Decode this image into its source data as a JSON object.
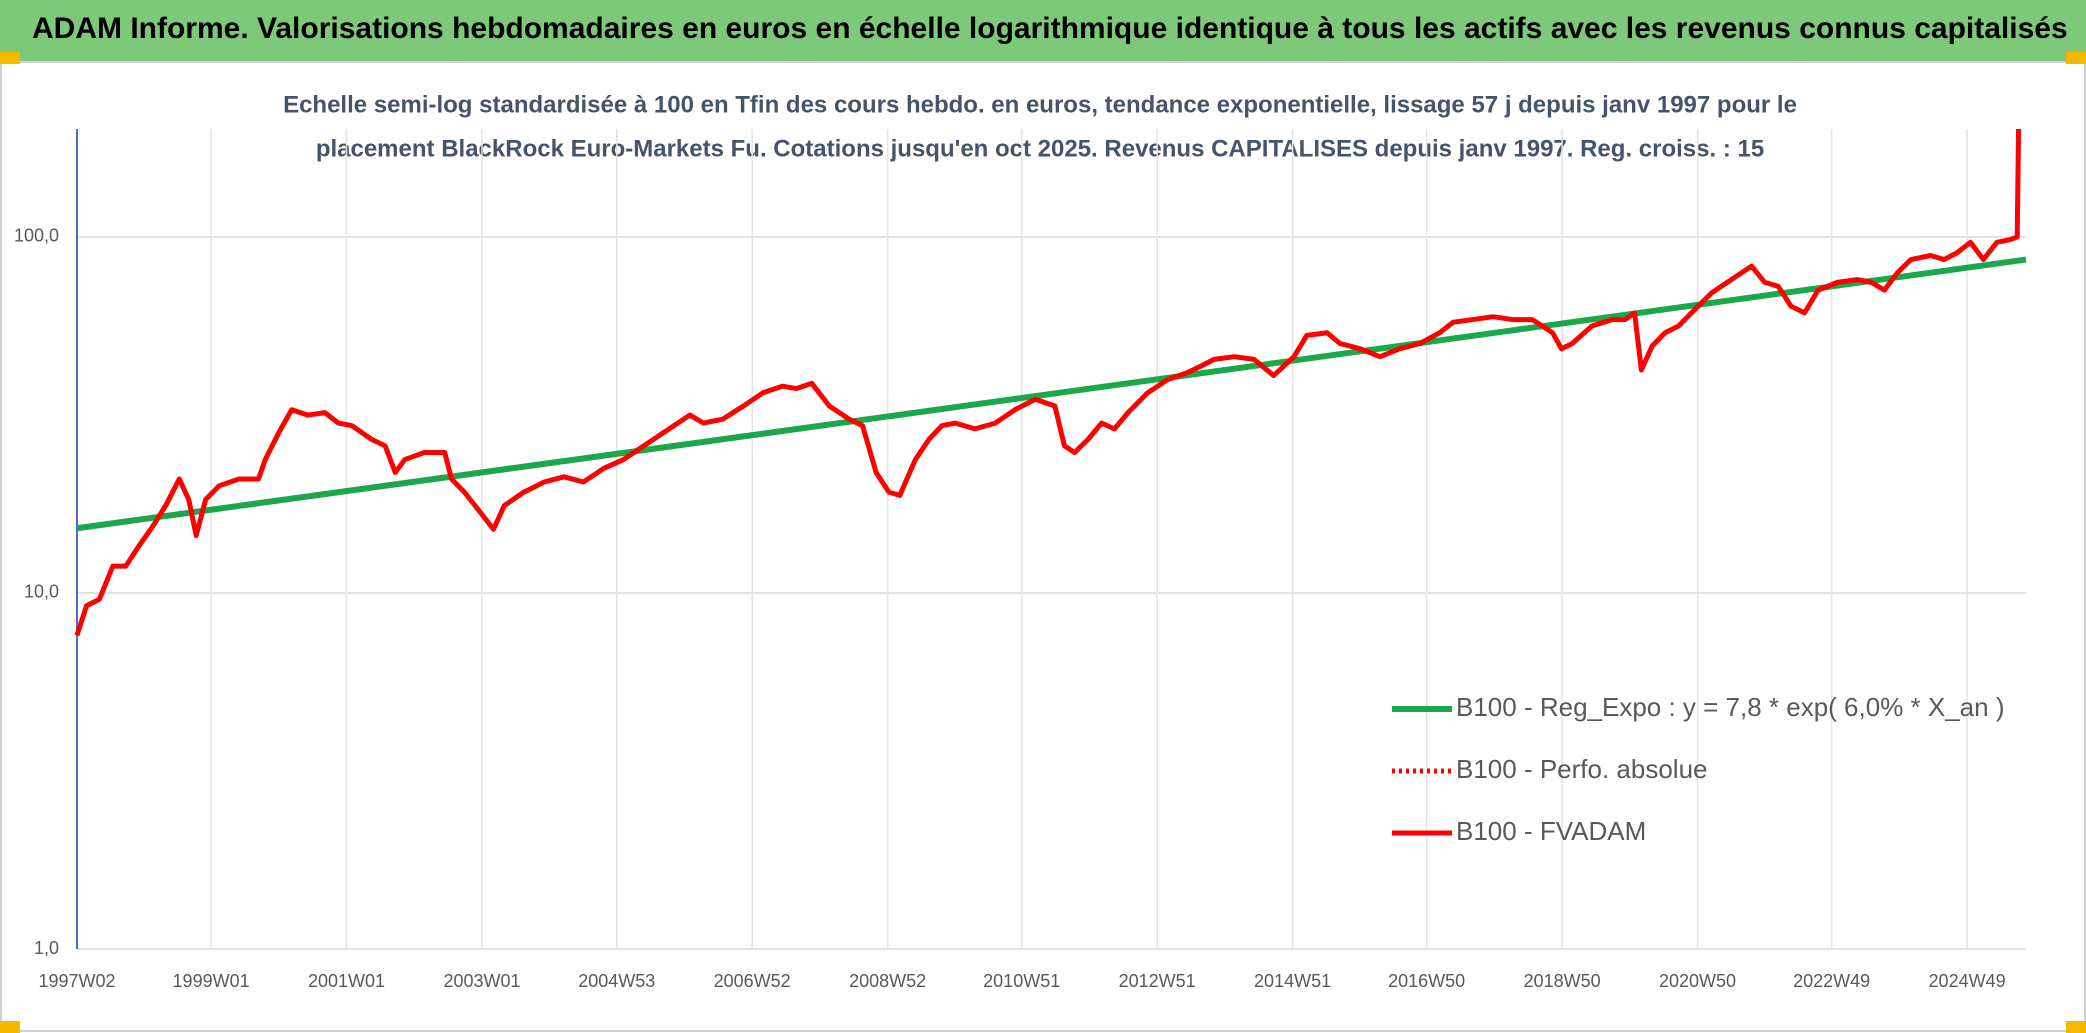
{
  "chart_data": {
    "type": "line",
    "title": "ADAM Informe. Valorisations hebdomadaires en euros en échelle logarithmique identique à tous les actifs avec les revenus connus capitalisés",
    "subtitle": [
      "Echelle semi-log standardisée à 100 en Tfin des cours hebdo. en euros, tendance exponentielle, lissage 57 j depuis janv 1997 pour le",
      "placement BlackRock Euro-Markets Fu. Cotations jusqu'en oct 2025. Revenus CAPITALISES depuis janv 1997. Reg. croiss. : 15"
    ],
    "log_y": true,
    "grid": true,
    "legend": "lower right",
    "xlim": [
      1997.02,
      2025.8
    ],
    "ylim": [
      1,
      201
    ],
    "yticks": [
      {
        "value": 1,
        "label": "1,0"
      },
      {
        "value": 10,
        "label": "10,0"
      },
      {
        "value": 100,
        "label": "100,0"
      }
    ],
    "xticks": [
      {
        "value": 1997.02,
        "label": "1997W02"
      },
      {
        "value": 1999.0,
        "label": "1999W01"
      },
      {
        "value": 2001.0,
        "label": "2001W01"
      },
      {
        "value": 2003.0,
        "label": "2003W01"
      },
      {
        "value": 2004.99,
        "label": "2004W53"
      },
      {
        "value": 2006.99,
        "label": "2006W52"
      },
      {
        "value": 2008.99,
        "label": "2008W52"
      },
      {
        "value": 2010.97,
        "label": "2010W51"
      },
      {
        "value": 2012.97,
        "label": "2012W51"
      },
      {
        "value": 2014.97,
        "label": "2014W51"
      },
      {
        "value": 2016.95,
        "label": "2016W50"
      },
      {
        "value": 2018.95,
        "label": "2018W50"
      },
      {
        "value": 2020.95,
        "label": "2020W50"
      },
      {
        "value": 2022.93,
        "label": "2022W49"
      },
      {
        "value": 2024.93,
        "label": "2024W49"
      }
    ],
    "series": [
      {
        "name": "B100 - Reg_Expo : y = 7,8 * exp( 6,0% *  X_an )",
        "color": "#1aa84a",
        "dash": "solid",
        "width": 6,
        "x": [
          1997.02,
          2025.8
        ],
        "values": [
          15.2,
          86.4
        ]
      },
      {
        "name": "B100 - Perfo. absolue",
        "color": "#ff0000",
        "dash": "dotted",
        "width": 5,
        "x": [],
        "values": []
      },
      {
        "name": "B100 - FVADAM",
        "color": "#ff0000",
        "dash": "solid",
        "width": 5,
        "x": [
          1997.02,
          1997.16,
          1997.35,
          1997.55,
          1997.74,
          1997.94,
          1998.14,
          1998.33,
          1998.53,
          1998.67,
          1998.78,
          1998.92,
          1999.12,
          1999.41,
          1999.7,
          1999.8,
          2000.0,
          2000.19,
          2000.43,
          2000.68,
          2000.88,
          2001.08,
          2001.37,
          2001.57,
          2001.72,
          2001.86,
          2002.15,
          2002.45,
          2002.55,
          2002.74,
          2002.98,
          2003.17,
          2003.33,
          2003.62,
          2003.92,
          2004.21,
          2004.5,
          2004.8,
          2005.09,
          2005.39,
          2005.68,
          2006.07,
          2006.27,
          2006.56,
          2006.86,
          2007.15,
          2007.44,
          2007.64,
          2007.87,
          2008.13,
          2008.42,
          2008.62,
          2008.82,
          2009.01,
          2009.17,
          2009.4,
          2009.6,
          2009.79,
          2009.99,
          2010.28,
          2010.58,
          2010.87,
          2011.17,
          2011.46,
          2011.6,
          2011.75,
          2011.95,
          2012.15,
          2012.34,
          2012.54,
          2012.83,
          2013.13,
          2013.42,
          2013.62,
          2013.81,
          2014.11,
          2014.4,
          2014.69,
          2014.99,
          2015.18,
          2015.48,
          2015.67,
          2015.97,
          2016.26,
          2016.55,
          2016.85,
          2017.14,
          2017.34,
          2017.63,
          2017.93,
          2018.22,
          2018.51,
          2018.81,
          2018.94,
          2019.1,
          2019.39,
          2019.69,
          2019.88,
          2020.02,
          2020.12,
          2020.28,
          2020.47,
          2020.67,
          2020.86,
          2021.16,
          2021.45,
          2021.75,
          2021.94,
          2022.14,
          2022.33,
          2022.53,
          2022.73,
          2023.02,
          2023.31,
          2023.51,
          2023.71,
          2023.9,
          2024.1,
          2024.39,
          2024.59,
          2024.78,
          2024.98,
          2025.17,
          2025.37,
          2025.57,
          2025.67,
          2025.69
        ],
        "values": [
          7.6,
          9.2,
          9.6,
          11.9,
          11.9,
          13.6,
          15.4,
          17.6,
          20.9,
          18.3,
          14.5,
          18.3,
          20.0,
          20.9,
          20.9,
          23.7,
          28.2,
          32.7,
          31.6,
          32.1,
          30.0,
          29.5,
          27.0,
          25.9,
          21.8,
          23.7,
          24.8,
          24.8,
          20.9,
          19.2,
          16.8,
          15.1,
          17.6,
          19.2,
          20.5,
          21.2,
          20.5,
          22.4,
          23.7,
          25.9,
          28.2,
          31.6,
          30.0,
          30.8,
          33.5,
          36.5,
          38.1,
          37.5,
          38.8,
          33.5,
          30.8,
          29.5,
          21.8,
          19.2,
          18.8,
          23.7,
          27.0,
          29.5,
          30.0,
          28.9,
          30.0,
          32.7,
          35.0,
          33.5,
          25.9,
          24.8,
          27.0,
          30.0,
          28.9,
          32.1,
          36.5,
          39.8,
          41.6,
          43.4,
          45.3,
          46.1,
          45.3,
          40.8,
          46.1,
          52.9,
          53.8,
          50.2,
          48.5,
          46.1,
          48.5,
          50.2,
          53.8,
          57.6,
          58.6,
          59.7,
          58.6,
          58.6,
          53.8,
          48.5,
          50.2,
          56.2,
          58.6,
          58.6,
          61.2,
          42.3,
          49.4,
          53.8,
          56.2,
          61.2,
          69.7,
          75.9,
          82.8,
          74.6,
          72.7,
          63.9,
          61.2,
          70.9,
          74.6,
          75.9,
          74.6,
          70.9,
          79.3,
          86.4,
          88.7,
          86.4,
          90.2,
          96.6,
          86.4,
          96.6,
          98.3,
          100,
          201
        ]
      }
    ]
  }
}
